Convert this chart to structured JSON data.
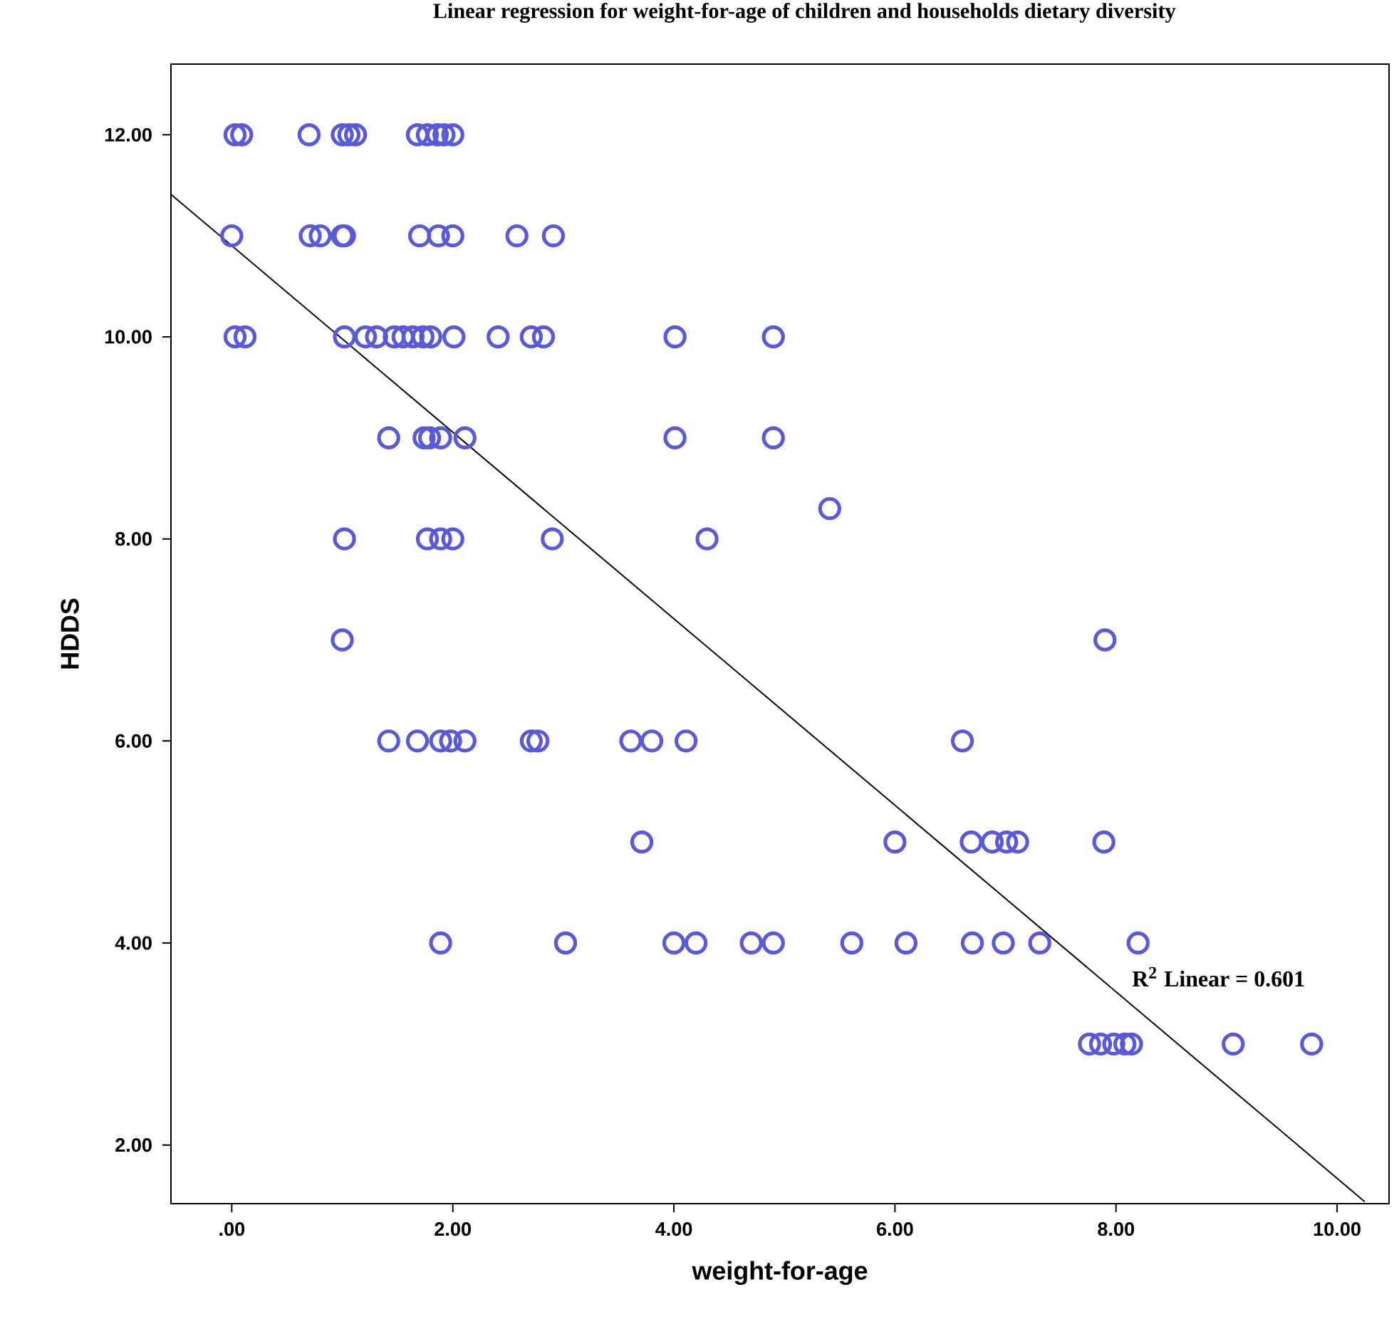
{
  "chart_data": {
    "type": "scatter",
    "title": "Linear regression for weight-for-age of children and households dietary diversity",
    "xlabel": "weight-for-age",
    "ylabel": "HDDS",
    "xlim": [
      -0.55,
      10.47
    ],
    "ylim": [
      1.42,
      12.7
    ],
    "xticks": [
      {
        "value": 0,
        "label": ".00"
      },
      {
        "value": 2,
        "label": "2.00"
      },
      {
        "value": 4,
        "label": "4.00"
      },
      {
        "value": 6,
        "label": "6.00"
      },
      {
        "value": 8,
        "label": "8.00"
      },
      {
        "value": 10,
        "label": "10.00"
      }
    ],
    "yticks": [
      {
        "value": 2,
        "label": "2.00"
      },
      {
        "value": 4,
        "label": "4.00"
      },
      {
        "value": 6,
        "label": "6.00"
      },
      {
        "value": 8,
        "label": "8.00"
      },
      {
        "value": 10,
        "label": "10.00"
      },
      {
        "value": 12,
        "label": "12.00"
      }
    ],
    "annotations": [
      "R$^{2}$ Linear = 0.601"
    ],
    "series": [
      {
        "marker": "circle",
        "color": "#5a5ad6",
        "x": [
          0.03,
          0.09,
          0.7,
          1.0,
          1.06,
          1.12,
          1.68,
          1.77,
          1.86,
          1.92,
          2.0,
          0.0,
          0.71,
          0.8,
          1.0,
          1.02,
          1.7,
          1.87,
          2.0,
          2.58,
          2.91,
          0.03,
          0.12,
          1.02,
          1.21,
          1.31,
          1.47,
          1.55,
          1.64,
          1.73,
          1.8,
          2.01,
          2.41,
          2.71,
          2.82,
          4.01,
          4.9,
          1.42,
          1.74,
          1.79,
          1.89,
          2.11,
          4.01,
          4.9,
          5.41,
          1.02,
          1.77,
          1.89,
          2.0,
          2.9,
          4.3,
          1.0,
          7.9,
          1.42,
          1.68,
          1.89,
          1.98,
          2.11,
          2.71,
          2.77,
          3.61,
          3.8,
          4.11,
          6.61,
          3.71,
          6.0,
          6.69,
          6.88,
          7.01,
          7.11,
          7.89,
          1.89,
          3.02,
          4.0,
          4.2,
          4.7,
          4.9,
          5.61,
          6.1,
          6.7,
          6.98,
          7.31,
          8.2,
          7.76,
          7.86,
          7.98,
          8.08,
          8.14,
          9.06,
          9.77
        ],
        "values": [
          12,
          12,
          12,
          12,
          12,
          12,
          12,
          12,
          12,
          12,
          12,
          11,
          11,
          11,
          11,
          11,
          11,
          11,
          11,
          11,
          11,
          10,
          10,
          10,
          10,
          10,
          10,
          10,
          10,
          10,
          10,
          10,
          10,
          10,
          10,
          10,
          10,
          9,
          9,
          9,
          9,
          9,
          9,
          9,
          8.3,
          8,
          8,
          8,
          8,
          8,
          8,
          7,
          7,
          6,
          6,
          6,
          6,
          6,
          6,
          6,
          6,
          6,
          6,
          6,
          5,
          5,
          5,
          5,
          5,
          5,
          5,
          4,
          4,
          4,
          4,
          4,
          4,
          4,
          4,
          4,
          4,
          4,
          4,
          3,
          3,
          3,
          3,
          3,
          3,
          3
        ]
      },
      {
        "type": "line",
        "color": "#000000",
        "x": [
          -0.55,
          10.25
        ],
        "values": [
          11.41,
          1.44
        ]
      }
    ]
  }
}
